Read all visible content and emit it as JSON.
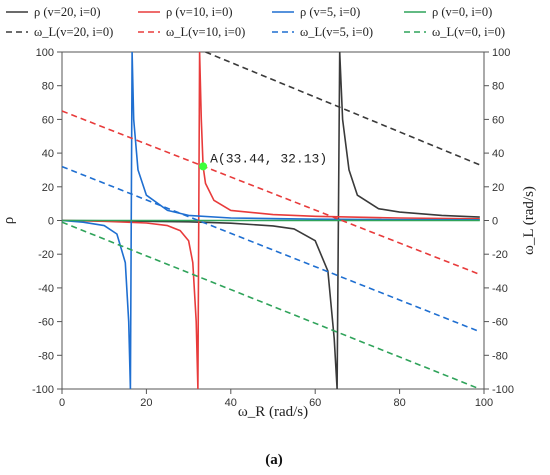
{
  "chart_data": {
    "type": "line",
    "title": "",
    "caption": "(a)",
    "xlabel": "ω_R  (rad/s)",
    "ylabel_left": "ρ",
    "ylabel_right": "ω_L  (rad/s)",
    "xlim": [
      0,
      100
    ],
    "ylim_left": [
      -100,
      100
    ],
    "ylim_right": [
      -100,
      100
    ],
    "xticks": [
      0,
      20,
      40,
      60,
      80,
      100
    ],
    "yticks": [
      -100,
      -80,
      -60,
      -40,
      -20,
      0,
      20,
      40,
      60,
      80,
      100
    ],
    "grid": false,
    "legend_position": "top",
    "legend": [
      {
        "label": "ρ (v=20, i=0)",
        "color": "#3a3a3a",
        "dash": false
      },
      {
        "label": "ρ (v=10, i=0)",
        "color": "#e83b3b",
        "dash": false
      },
      {
        "label": "ρ (v=5, i=0)",
        "color": "#1f6fd1",
        "dash": false
      },
      {
        "label": "ρ (v=0, i=0)",
        "color": "#2fa35a",
        "dash": false
      },
      {
        "label": "ω_L(v=20, i=0)",
        "color": "#3a3a3a",
        "dash": true
      },
      {
        "label": "ω_L(v=10, i=0)",
        "color": "#e83b3b",
        "dash": true
      },
      {
        "label": "ω_L(v=5, i=0)",
        "color": "#1f6fd1",
        "dash": true
      },
      {
        "label": "ω_L(v=0, i=0)",
        "color": "#2fa35a",
        "dash": true
      }
    ],
    "series": [
      {
        "name": "ρ (v=20, i=0)",
        "kind": "rho",
        "color": "#3a3a3a",
        "dash": false,
        "x": [
          0,
          10,
          20,
          30,
          40,
          50,
          55,
          60,
          63,
          64.5,
          65.2,
          65.8,
          66.5,
          68,
          70,
          75,
          80,
          90,
          99
        ],
        "y": [
          0,
          -0.2,
          -0.5,
          -0.8,
          -1.6,
          -3.2,
          -5,
          -12,
          -30,
          -70,
          -100,
          100,
          60,
          30,
          15,
          7,
          5,
          3,
          2
        ]
      },
      {
        "name": "ρ (v=10, i=0)",
        "kind": "rho",
        "color": "#e83b3b",
        "dash": false,
        "x": [
          0,
          10,
          20,
          25,
          28,
          30,
          31,
          31.8,
          32.2,
          32.6,
          33,
          33.44,
          34,
          36,
          40,
          50,
          60,
          80,
          99
        ],
        "y": [
          0,
          -0.5,
          -1.5,
          -3,
          -6,
          -12,
          -25,
          -60,
          -100,
          100,
          60,
          32.13,
          22,
          12,
          6,
          3.5,
          2.5,
          1.5,
          1
        ]
      },
      {
        "name": "ρ (v=5, i=0)",
        "kind": "rho",
        "color": "#1f6fd1",
        "dash": false,
        "x": [
          0,
          5,
          10,
          13,
          15,
          15.8,
          16.2,
          16.6,
          17,
          18,
          20,
          25,
          30,
          40,
          60,
          80,
          99
        ],
        "y": [
          0,
          -1,
          -3,
          -8,
          -25,
          -60,
          -100,
          100,
          60,
          30,
          15,
          6,
          3,
          1.5,
          0.8,
          0.5,
          0.4
        ]
      },
      {
        "name": "ρ (v=0, i=0)",
        "kind": "rho",
        "color": "#2fa35a",
        "dash": false,
        "x": [
          0,
          99
        ],
        "y": [
          0,
          0
        ]
      },
      {
        "name": "ω_L(v=20, i=0)",
        "kind": "omega",
        "color": "#3a3a3a",
        "dash": true,
        "x": [
          34,
          99
        ],
        "y": [
          100,
          33
        ]
      },
      {
        "name": "ω_L(v=10, i=0)",
        "kind": "omega",
        "color": "#e83b3b",
        "dash": true,
        "x": [
          0,
          99
        ],
        "y": [
          65,
          -32
        ]
      },
      {
        "name": "ω_L(v=5, i=0)",
        "kind": "omega",
        "color": "#1f6fd1",
        "dash": true,
        "x": [
          0,
          99
        ],
        "y": [
          32,
          -66
        ]
      },
      {
        "name": "ω_L(v=0, i=0)",
        "kind": "omega",
        "color": "#2fa35a",
        "dash": true,
        "x": [
          0,
          99
        ],
        "y": [
          -1,
          -100
        ]
      }
    ],
    "annotation": {
      "text": "A(33.44,  32.13)",
      "x": 33.44,
      "y": 32.13,
      "color": "#3cff3c"
    }
  }
}
